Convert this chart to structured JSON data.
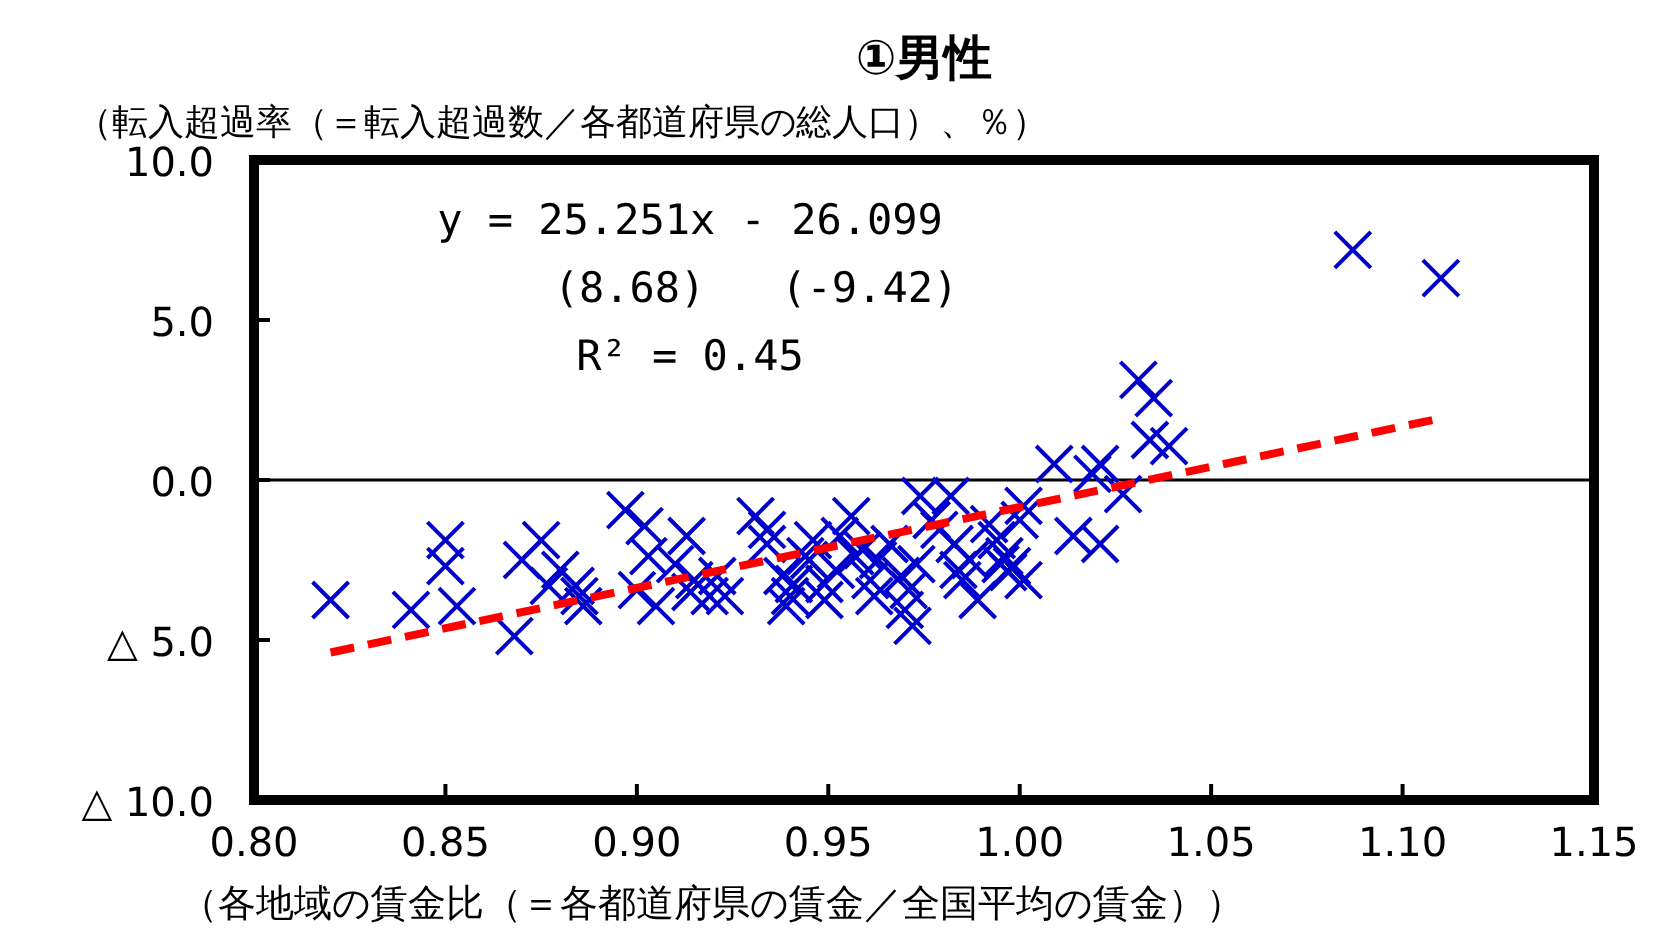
{
  "chart_data": {
    "type": "scatter",
    "title": "①男性",
    "ylabel": "（転入超過率（＝転入超過数／各都道府県の総人口）、％）",
    "xlabel": "（各地域の賃金比（＝各都道府県の賃金／全国平均の賃金））",
    "annotations": [
      "y = 25.251x - 26.099",
      "(8.68)   (-9.42)",
      "R² = 0.45"
    ],
    "xlim": [
      0.8,
      1.15
    ],
    "xticks": [
      {
        "value": 0.8,
        "label": "0.80"
      },
      {
        "value": 0.85,
        "label": "0.85"
      },
      {
        "value": 0.9,
        "label": "0.90"
      },
      {
        "value": 0.95,
        "label": "0.95"
      },
      {
        "value": 1.0,
        "label": "1.00"
      },
      {
        "value": 1.05,
        "label": "1.05"
      },
      {
        "value": 1.1,
        "label": "1.10"
      },
      {
        "value": 1.15,
        "label": "1.15"
      }
    ],
    "ylim": [
      -10,
      10
    ],
    "yticks": [
      {
        "value": 10,
        "label": "10.0"
      },
      {
        "value": 5,
        "label": "5.0"
      },
      {
        "value": 0,
        "label": "0.0"
      },
      {
        "value": -5,
        "label": "△ 5.0"
      },
      {
        "value": -10,
        "label": "△ 10.0"
      }
    ],
    "grid": false,
    "ref_lines": [
      {
        "axis": "y",
        "value": 0,
        "color": "#000000"
      }
    ],
    "series": [
      {
        "color": "#0000cc",
        "marker": "cross",
        "x": [
          0.82,
          0.841,
          0.85,
          0.85,
          0.853,
          0.868,
          0.87,
          0.875,
          0.877,
          0.88,
          0.884,
          0.885,
          0.886,
          0.897,
          0.9,
          0.902,
          0.903,
          0.905,
          0.91,
          0.913,
          0.914,
          0.915,
          0.919,
          0.921,
          0.923,
          0.931,
          0.934,
          0.934,
          0.938,
          0.939,
          0.94,
          0.941,
          0.944,
          0.945,
          0.946,
          0.949,
          0.949,
          0.952,
          0.953,
          0.956,
          0.957,
          0.959,
          0.961,
          0.962,
          0.963,
          0.966,
          0.969,
          0.97,
          0.971,
          0.973,
          0.974,
          0.977,
          0.979,
          0.982,
          0.983,
          0.984,
          0.985,
          0.987,
          0.989,
          0.972,
          0.992,
          0.994,
          0.995,
          0.996,
          0.997,
          1.0,
          1.001,
          0.998,
          1.001,
          1.009,
          1.021,
          1.019,
          1.027,
          1.014,
          1.021,
          1.031,
          1.035,
          1.034,
          1.039,
          1.087,
          1.11
        ],
        "values": [
          -3.75,
          -4.06,
          -1.88,
          -2.69,
          -3.94,
          -4.88,
          -2.5,
          -1.88,
          -3.31,
          -2.81,
          -3.31,
          -3.63,
          -3.94,
          -0.94,
          -3.44,
          -1.44,
          -2.38,
          -3.94,
          -2.63,
          -1.75,
          -3.5,
          -3.13,
          -3.63,
          -3.0,
          -3.63,
          -1.13,
          -1.56,
          -2.0,
          -3.0,
          -3.94,
          -3.63,
          -3.25,
          -2.38,
          -2.5,
          -1.88,
          -3.25,
          -3.75,
          -2.81,
          -1.75,
          -1.13,
          -2.38,
          -2.19,
          -3.13,
          -3.63,
          -2.5,
          -2.0,
          -3.0,
          -4.06,
          -3.44,
          -2.63,
          -0.5,
          -1.25,
          -1.56,
          -0.5,
          -2.0,
          -2.81,
          -3.13,
          -2.5,
          -3.75,
          -4.56,
          -1.38,
          -1.88,
          -2.63,
          -2.38,
          -2.88,
          -1.25,
          -0.81,
          -2.69,
          -3.13,
          0.5,
          0.5,
          0.19,
          -0.44,
          -1.75,
          -2.0,
          3.13,
          2.56,
          1.25,
          1.06,
          7.19,
          6.31
        ]
      },
      {
        "type": "line",
        "color": "#ff0000",
        "line_style": "dashed",
        "x": [
          0.82,
          1.11
        ],
        "values": [
          -5.39,
          1.93
        ]
      }
    ]
  }
}
